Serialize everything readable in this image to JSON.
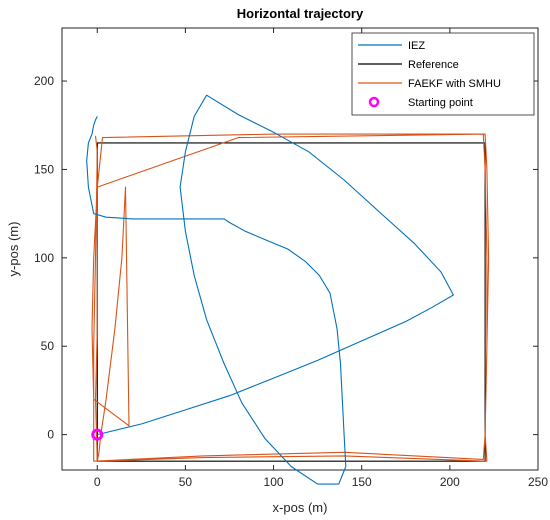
{
  "chart_data": {
    "type": "line",
    "title": "Horizontal trajectory",
    "xlabel": "x-pos (m)",
    "ylabel": "y-pos (m)",
    "xlim": [
      -20,
      250
    ],
    "ylim": [
      -20,
      230
    ],
    "xticks": [
      0,
      50,
      100,
      150,
      200,
      250
    ],
    "yticks": [
      0,
      50,
      100,
      150,
      200
    ],
    "grid": false,
    "legend_position": "top-right",
    "series": [
      {
        "name": "IEZ",
        "color": "#0072BD",
        "x": [
          0,
          25,
          50,
          75,
          100,
          125,
          150,
          175,
          190,
          202,
          195,
          180,
          160,
          140,
          120,
          100,
          80,
          62,
          55,
          50,
          47,
          50,
          55,
          62,
          72,
          82,
          95,
          110,
          125,
          137,
          141,
          140,
          139,
          138,
          136,
          132,
          126,
          118,
          108,
          96,
          84,
          75,
          72,
          60,
          40,
          20,
          5,
          -2,
          -5,
          -6,
          -5,
          -3,
          -2,
          -1,
          0,
          0
        ],
        "y": [
          0,
          6,
          14,
          22,
          32,
          42,
          53,
          64,
          72,
          79,
          92,
          108,
          126,
          144,
          160,
          171,
          181,
          192,
          180,
          160,
          140,
          115,
          90,
          65,
          40,
          18,
          -2,
          -18,
          -28,
          -28,
          -18,
          0,
          20,
          40,
          60,
          80,
          90,
          98,
          105,
          110,
          115,
          120,
          122,
          122,
          122,
          122,
          123,
          125,
          140,
          155,
          165,
          170,
          175,
          178,
          180,
          180
        ]
      },
      {
        "name": "Reference",
        "color": "#000000",
        "x": [
          0,
          220,
          220,
          0,
          0
        ],
        "y": [
          -15,
          -15,
          165,
          165,
          -15
        ]
      },
      {
        "name": "FAEKF with SMHU",
        "color": "#D95319",
        "x": [
          0,
          1,
          2,
          5,
          10,
          12,
          14,
          16,
          18,
          -2,
          -3,
          -2,
          0,
          80,
          220,
          221,
          222,
          221,
          220,
          221,
          140,
          60,
          0,
          -1,
          0,
          0,
          0,
          3,
          100,
          219,
          220,
          221,
          221,
          220,
          219,
          140,
          60,
          -2,
          -2,
          -1,
          0,
          -1
        ],
        "y": [
          -15,
          -10,
          0,
          20,
          60,
          80,
          100,
          140,
          5,
          20,
          60,
          100,
          140,
          168,
          170,
          150,
          100,
          50,
          0,
          -15,
          -12,
          -13,
          -15,
          20,
          60,
          100,
          140,
          168,
          170,
          170,
          150,
          100,
          50,
          0,
          -14,
          -10,
          -12,
          -15,
          50,
          100,
          160,
          169
        ]
      },
      {
        "name": "Starting point",
        "color": "#FF00FF",
        "marker": "circle",
        "x": [
          0
        ],
        "y": [
          0
        ]
      }
    ]
  }
}
